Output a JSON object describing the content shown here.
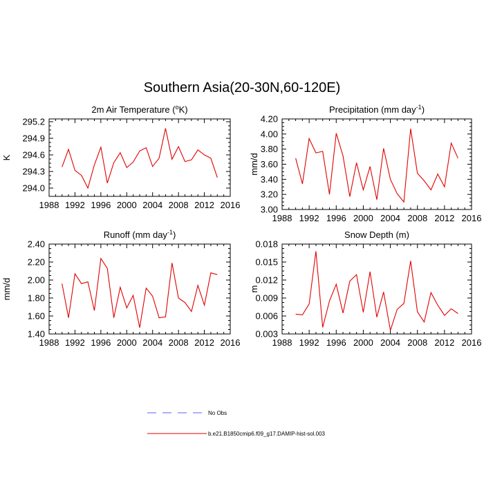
{
  "page_title": "Southern Asia(20-30N,60-120E)",
  "legend": {
    "entries": [
      {
        "label": "No Obs",
        "color": "#5b5bff",
        "style": "dashed"
      },
      {
        "label": "b.e21.B1850cmip6.f09_g17.DAMIP-hist-sol.003",
        "color": "#e00000",
        "style": "solid"
      }
    ]
  },
  "chart_data": [
    {
      "type": "line",
      "title": "2m Air Temperature (",
      "title_sup": "o",
      "title_end": "K)",
      "ylabel": "K",
      "xlim": [
        1988,
        2016
      ],
      "ylim": [
        293.85,
        295.25
      ],
      "yticks": [
        294.0,
        294.3,
        294.6,
        294.9,
        295.2
      ],
      "ytick_labels": [
        "294.0",
        "294.3",
        "294.6",
        "294.9",
        "295.2"
      ],
      "xticks": [
        1988,
        1992,
        1996,
        2000,
        2004,
        2008,
        2012,
        2016
      ],
      "xtick_labels": [
        "1988",
        "1992",
        "1996",
        "2000",
        "2004",
        "2008",
        "2012",
        "2016"
      ],
      "x": [
        1990,
        1991,
        1992,
        1993,
        1994,
        1995,
        1996,
        1997,
        1998,
        1999,
        2000,
        2001,
        2002,
        2003,
        2004,
        2005,
        2006,
        2007,
        2008,
        2009,
        2010,
        2011,
        2012,
        2013,
        2014
      ],
      "series": [
        {
          "color": "#e00000",
          "values": [
            294.38,
            294.7,
            294.32,
            294.23,
            294.0,
            294.42,
            294.74,
            294.09,
            294.46,
            294.64,
            294.37,
            294.47,
            294.67,
            294.73,
            294.39,
            294.54,
            295.08,
            294.52,
            294.75,
            294.48,
            294.51,
            294.69,
            294.6,
            294.54,
            294.19
          ]
        }
      ]
    },
    {
      "type": "line",
      "title": "Precipitation (mm day",
      "title_sup": "-1",
      "title_end": ")",
      "ylabel": "mm/d",
      "xlim": [
        1988,
        2016
      ],
      "ylim": [
        3.0,
        4.2
      ],
      "yticks": [
        3.0,
        3.2,
        3.4,
        3.6,
        3.8,
        4.0,
        4.2
      ],
      "ytick_labels": [
        "3.00",
        "3.20",
        "3.40",
        "3.60",
        "3.80",
        "4.00",
        "4.20"
      ],
      "xticks": [
        1988,
        1992,
        1996,
        2000,
        2004,
        2008,
        2012,
        2016
      ],
      "xtick_labels": [
        "1988",
        "1992",
        "1996",
        "2000",
        "2004",
        "2008",
        "2012",
        "2016"
      ],
      "x": [
        1990,
        1991,
        1992,
        1993,
        1994,
        1995,
        1996,
        1997,
        1998,
        1999,
        2000,
        2001,
        2002,
        2003,
        2004,
        2005,
        2006,
        2007,
        2008,
        2009,
        2010,
        2011,
        2012,
        2013,
        2014
      ],
      "series": [
        {
          "color": "#e00000",
          "values": [
            3.68,
            3.34,
            3.94,
            3.75,
            3.77,
            3.2,
            4.01,
            3.71,
            3.17,
            3.62,
            3.26,
            3.57,
            3.13,
            3.81,
            3.4,
            3.21,
            3.1,
            4.07,
            3.48,
            3.38,
            3.26,
            3.47,
            3.3,
            3.88,
            3.68
          ]
        }
      ]
    },
    {
      "type": "line",
      "title": "Runoff (mm day",
      "title_sup": "-1",
      "title_end": ")",
      "ylabel": "mm/d",
      "xlim": [
        1988,
        2016
      ],
      "ylim": [
        1.4,
        2.4
      ],
      "yticks": [
        1.4,
        1.6,
        1.8,
        2.0,
        2.2,
        2.4
      ],
      "ytick_labels": [
        "1.40",
        "1.60",
        "1.80",
        "2.00",
        "2.20",
        "2.40"
      ],
      "xticks": [
        1988,
        1992,
        1996,
        2000,
        2004,
        2008,
        2012,
        2016
      ],
      "xtick_labels": [
        "1988",
        "1992",
        "1996",
        "2000",
        "2004",
        "2008",
        "2012",
        "2016"
      ],
      "x": [
        1990,
        1991,
        1992,
        1993,
        1994,
        1995,
        1996,
        1997,
        1998,
        1999,
        2000,
        2001,
        2002,
        2003,
        2004,
        2005,
        2006,
        2007,
        2008,
        2009,
        2010,
        2011,
        2012,
        2013,
        2014
      ],
      "series": [
        {
          "color": "#e00000",
          "values": [
            1.96,
            1.58,
            2.07,
            1.96,
            1.98,
            1.66,
            2.24,
            2.13,
            1.58,
            1.92,
            1.69,
            1.83,
            1.47,
            1.91,
            1.82,
            1.58,
            1.59,
            2.19,
            1.8,
            1.75,
            1.65,
            1.94,
            1.72,
            2.08,
            2.06
          ]
        }
      ]
    },
    {
      "type": "line",
      "title": "Snow Depth (m)",
      "title_sup": "",
      "title_end": "",
      "ylabel": "m",
      "xlim": [
        1988,
        2016
      ],
      "ylim": [
        0.003,
        0.018
      ],
      "yticks": [
        0.003,
        0.006,
        0.009,
        0.012,
        0.015,
        0.018
      ],
      "ytick_labels": [
        "0.003",
        "0.006",
        "0.009",
        "0.012",
        "0.015",
        "0.018"
      ],
      "xticks": [
        1988,
        1992,
        1996,
        2000,
        2004,
        2008,
        2012,
        2016
      ],
      "xtick_labels": [
        "1988",
        "1992",
        "1996",
        "2000",
        "2004",
        "2008",
        "2012",
        "2016"
      ],
      "x": [
        1990,
        1991,
        1992,
        1993,
        1994,
        1995,
        1996,
        1997,
        1998,
        1999,
        2000,
        2001,
        2002,
        2003,
        2004,
        2005,
        2006,
        2007,
        2008,
        2009,
        2010,
        2011,
        2012,
        2013,
        2014
      ],
      "series": [
        {
          "color": "#e00000",
          "values": [
            0.0063,
            0.0062,
            0.008,
            0.0168,
            0.0041,
            0.0085,
            0.0113,
            0.0065,
            0.0118,
            0.0129,
            0.0066,
            0.0134,
            0.0058,
            0.01,
            0.0036,
            0.0071,
            0.0081,
            0.0152,
            0.0067,
            0.005,
            0.0099,
            0.0078,
            0.0061,
            0.0072,
            0.0064
          ]
        }
      ]
    }
  ]
}
